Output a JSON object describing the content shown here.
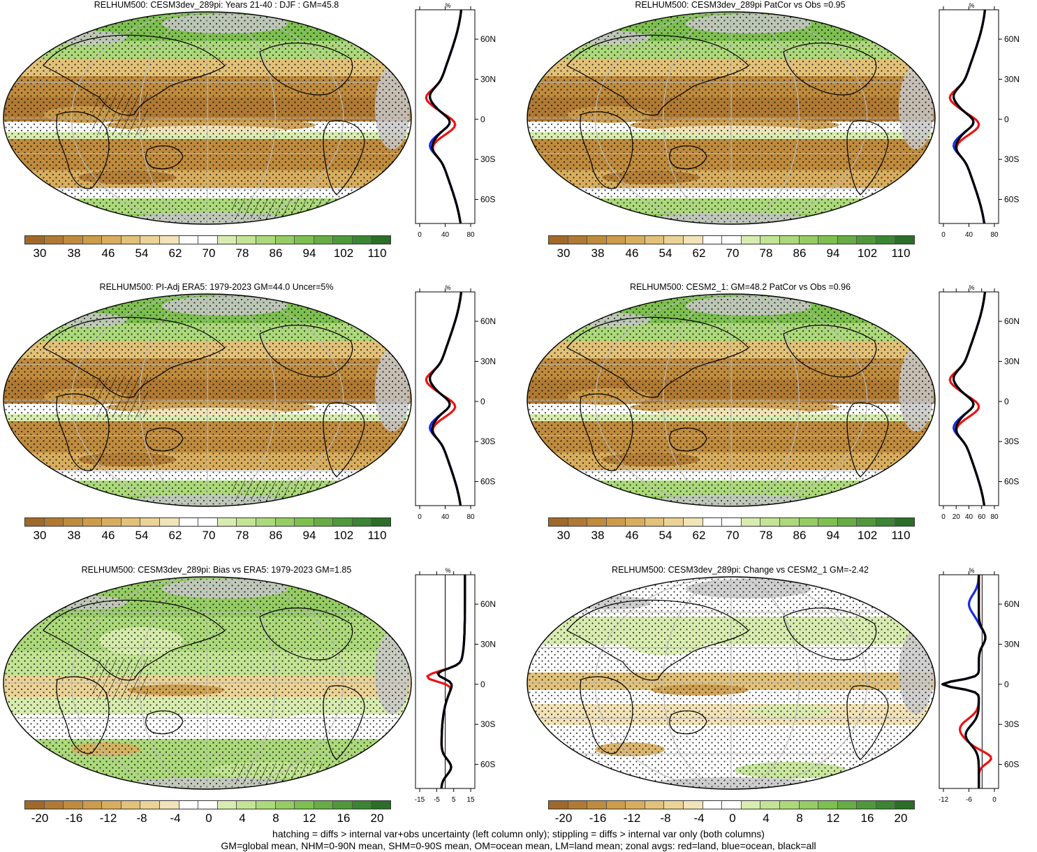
{
  "panels": [
    {
      "id": "p1",
      "title": "RELHUM500: CESM3dev_289pi: Years 21-40 : DJF : GM=45.8",
      "kind": "abs",
      "hatch": true,
      "profile": {
        "unit": "%",
        "xticks": [
          "0",
          "40",
          "80"
        ],
        "xlim": [
          0,
          90
        ],
        "zero_line": false
      },
      "colorbar": {
        "labels": [
          "30",
          "38",
          "46",
          "54",
          "62",
          "70",
          "78",
          "86",
          "94",
          "102",
          "110"
        ]
      }
    },
    {
      "id": "p2",
      "title": "RELHUM500: CESM3dev_289pi PatCor vs Obs =0.95",
      "kind": "abs",
      "hatch": false,
      "profile": {
        "unit": "%",
        "xticks": [
          "0",
          "40",
          "80"
        ],
        "xlim": [
          0,
          90
        ],
        "zero_line": false
      },
      "colorbar": {
        "labels": [
          "30",
          "38",
          "46",
          "54",
          "62",
          "70",
          "78",
          "86",
          "94",
          "102",
          "110"
        ]
      }
    },
    {
      "id": "p3",
      "title": "RELHUM500: PI-Adj ERA5: 1979-2023 GM=44.0 Uncer=5%",
      "kind": "abs",
      "hatch": true,
      "profile": {
        "unit": "%",
        "xticks": [
          "0",
          "40",
          "80"
        ],
        "xlim": [
          0,
          90
        ],
        "zero_line": false
      },
      "colorbar": {
        "labels": [
          "30",
          "38",
          "46",
          "54",
          "62",
          "70",
          "78",
          "86",
          "94",
          "102",
          "110"
        ]
      }
    },
    {
      "id": "p4",
      "title": "RELHUM500: CESM2_1: GM=48.2 PatCor vs Obs =0.96",
      "kind": "abs",
      "hatch": false,
      "profile": {
        "unit": "%",
        "xticks": [
          "0",
          "20",
          "40",
          "60",
          "80"
        ],
        "xlim": [
          0,
          90
        ],
        "zero_line": false
      },
      "colorbar": {
        "labels": [
          "30",
          "38",
          "46",
          "54",
          "62",
          "70",
          "78",
          "86",
          "94",
          "102",
          "110"
        ]
      }
    },
    {
      "id": "p5",
      "title": "RELHUM500: CESM3dev_289pi: Bias vs ERA5: 1979-2023 GM=1.85",
      "kind": "diff",
      "hatch": true,
      "profile": {
        "unit": "%",
        "xticks": [
          "-15",
          "-5",
          "5",
          "15"
        ],
        "xlim": [
          -15,
          15
        ],
        "zero_line": true
      },
      "colorbar": {
        "labels": [
          "-20",
          "-16",
          "-12",
          "-8",
          "-4",
          "0",
          "4",
          "8",
          "12",
          "16",
          "20"
        ]
      }
    },
    {
      "id": "p6",
      "title": "RELHUM500: CESM3dev_289pi: Change vs CESM2_1 GM=-2.42",
      "kind": "diff",
      "hatch": false,
      "profile": {
        "unit": "%",
        "xticks": [
          "-12",
          "-6",
          "0"
        ],
        "xlim": [
          -13,
          5
        ],
        "zero_line": true
      },
      "colorbar": {
        "labels": [
          "-20",
          "-16",
          "-12",
          "-8",
          "-4",
          "0",
          "4",
          "8",
          "12",
          "16",
          "20"
        ]
      }
    }
  ],
  "lat_labels": [
    "60N",
    "30N",
    "0",
    "30S",
    "60S"
  ],
  "colors": {
    "scale": [
      "#a0692a",
      "#b07a33",
      "#bf8b3d",
      "#cc9c4a",
      "#d8ae5e",
      "#e2c178",
      "#ebd396",
      "#f2e3b8",
      "#ffffff",
      "#ffffff",
      "#d9ecb0",
      "#c4e495",
      "#acd97a",
      "#95cc63",
      "#7ec050",
      "#67ad44",
      "#4f993b",
      "#3a8632",
      "#2a6e28"
    ],
    "land_mask": "#c8c8c8",
    "land_red": "#ee1111",
    "ocean_blue": "#1a2be0",
    "all_black": "#000000"
  },
  "footer": {
    "line1": "hatching = diffs > internal var+obs uncertainty (left column only); stippling = diffs > internal var only (both columns)",
    "line2": "GM=global mean, NHM=0-90N mean, SHM=0-90S mean, OM=ocean mean, LM=land mean; zonal avgs: red=land, blue=ocean, black=all"
  }
}
